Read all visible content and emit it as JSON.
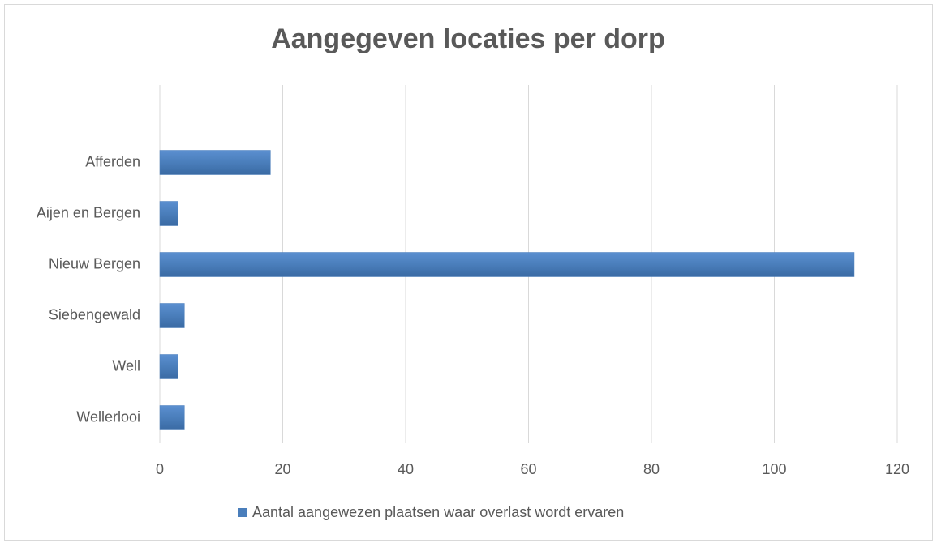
{
  "chart_data": {
    "type": "bar",
    "orientation": "horizontal",
    "title": "Aangegeven locaties per dorp",
    "categories": [
      "Afferden",
      "Aijen en Bergen",
      "Nieuw Bergen",
      "Siebengewald",
      "Well",
      "Wellerlooi"
    ],
    "series": [
      {
        "name": "Aantal aangewezen plaatsen waar overlast wordt ervaren",
        "color": "#4a7ebb",
        "values": [
          18,
          3,
          113,
          4,
          3,
          4
        ]
      }
    ],
    "xlim": [
      0,
      120
    ],
    "xticks": [
      0,
      20,
      40,
      60,
      80,
      100,
      120
    ],
    "grid": true,
    "legend": "bottom"
  }
}
